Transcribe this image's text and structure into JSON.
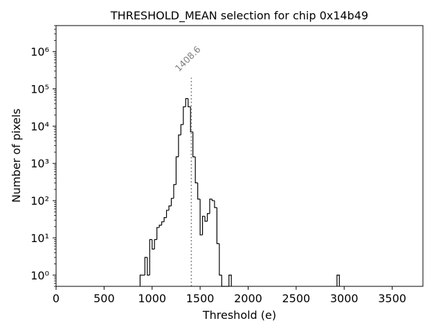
{
  "chart_data": {
    "type": "histogram",
    "title": "THRESHOLD_MEAN selection for chip 0x14b49",
    "xlabel": "Threshold (e)",
    "ylabel": "Number of pixels",
    "xlim": [
      0,
      3820
    ],
    "ylim": [
      0.5,
      5000000
    ],
    "yscale": "log",
    "grid": false,
    "legend": "none",
    "xticks": [
      0,
      500,
      1000,
      1500,
      2000,
      2500,
      3000,
      3500
    ],
    "xtick_labels": [
      "0",
      "500",
      "1000",
      "1500",
      "2000",
      "2500",
      "3000",
      "3500"
    ],
    "yticks": [
      1,
      10,
      100,
      1000,
      10000,
      100000,
      1000000
    ],
    "ytick_labels": [
      "10⁰",
      "10¹",
      "10²",
      "10³",
      "10⁴",
      "10⁵",
      "10⁶"
    ],
    "bin_width": 25,
    "bins": [
      {
        "x": 875,
        "y": 1
      },
      {
        "x": 900,
        "y": 1
      },
      {
        "x": 925,
        "y": 3
      },
      {
        "x": 950,
        "y": 1
      },
      {
        "x": 975,
        "y": 9
      },
      {
        "x": 1000,
        "y": 5
      },
      {
        "x": 1025,
        "y": 9
      },
      {
        "x": 1050,
        "y": 19
      },
      {
        "x": 1075,
        "y": 22
      },
      {
        "x": 1100,
        "y": 27
      },
      {
        "x": 1125,
        "y": 35
      },
      {
        "x": 1150,
        "y": 55
      },
      {
        "x": 1175,
        "y": 72
      },
      {
        "x": 1200,
        "y": 115
      },
      {
        "x": 1225,
        "y": 270
      },
      {
        "x": 1250,
        "y": 1500
      },
      {
        "x": 1275,
        "y": 5800
      },
      {
        "x": 1300,
        "y": 11000
      },
      {
        "x": 1325,
        "y": 33000
      },
      {
        "x": 1350,
        "y": 55000
      },
      {
        "x": 1375,
        "y": 33000
      },
      {
        "x": 1400,
        "y": 7000
      },
      {
        "x": 1425,
        "y": 1500
      },
      {
        "x": 1450,
        "y": 300
      },
      {
        "x": 1475,
        "y": 110
      },
      {
        "x": 1500,
        "y": 12
      },
      {
        "x": 1525,
        "y": 38
      },
      {
        "x": 1550,
        "y": 28
      },
      {
        "x": 1575,
        "y": 45
      },
      {
        "x": 1600,
        "y": 110
      },
      {
        "x": 1625,
        "y": 100
      },
      {
        "x": 1650,
        "y": 65
      },
      {
        "x": 1675,
        "y": 7
      },
      {
        "x": 1700,
        "y": 1
      },
      {
        "x": 1725,
        "y": 0
      },
      {
        "x": 1750,
        "y": 0
      },
      {
        "x": 1775,
        "y": 0
      },
      {
        "x": 1800,
        "y": 1
      },
      {
        "x": 2925,
        "y": 1
      }
    ],
    "annotation": {
      "x": 1408.6,
      "text": "1408.6",
      "line_top": 200000,
      "color": "#808080",
      "style": "dotted"
    },
    "colors": {
      "histogram": "#000000",
      "axes": "#000000",
      "annotation": "#808080"
    }
  }
}
